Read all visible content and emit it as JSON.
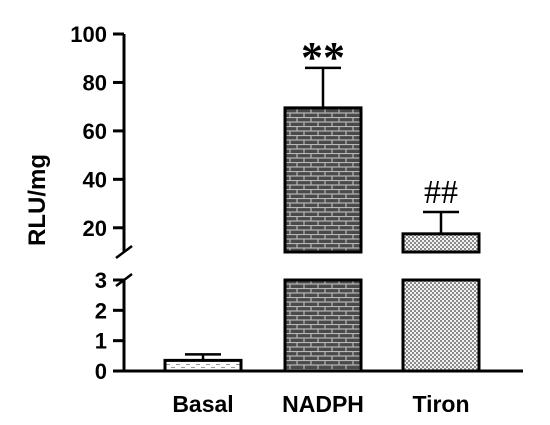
{
  "chart_data": {
    "type": "bar",
    "ylabel": "RLU/mg",
    "categories": [
      "Basal",
      "NADPH",
      "Tiron"
    ],
    "values": [
      0.35,
      69.5,
      17.5
    ],
    "errors": [
      0.2,
      16.5,
      9.0
    ],
    "annotations": [
      "",
      "**",
      "##"
    ],
    "y_axis_break": true,
    "lower_segment": {
      "ylim": [
        0,
        3
      ],
      "ticks": [
        "0",
        "1",
        "2",
        "3"
      ]
    },
    "upper_segment": {
      "ylim": [
        10,
        100
      ],
      "ticks": [
        "20",
        "40",
        "60",
        "80",
        "100"
      ]
    },
    "patterns": [
      "light-dashed",
      "dark-brick",
      "light-checker"
    ]
  }
}
